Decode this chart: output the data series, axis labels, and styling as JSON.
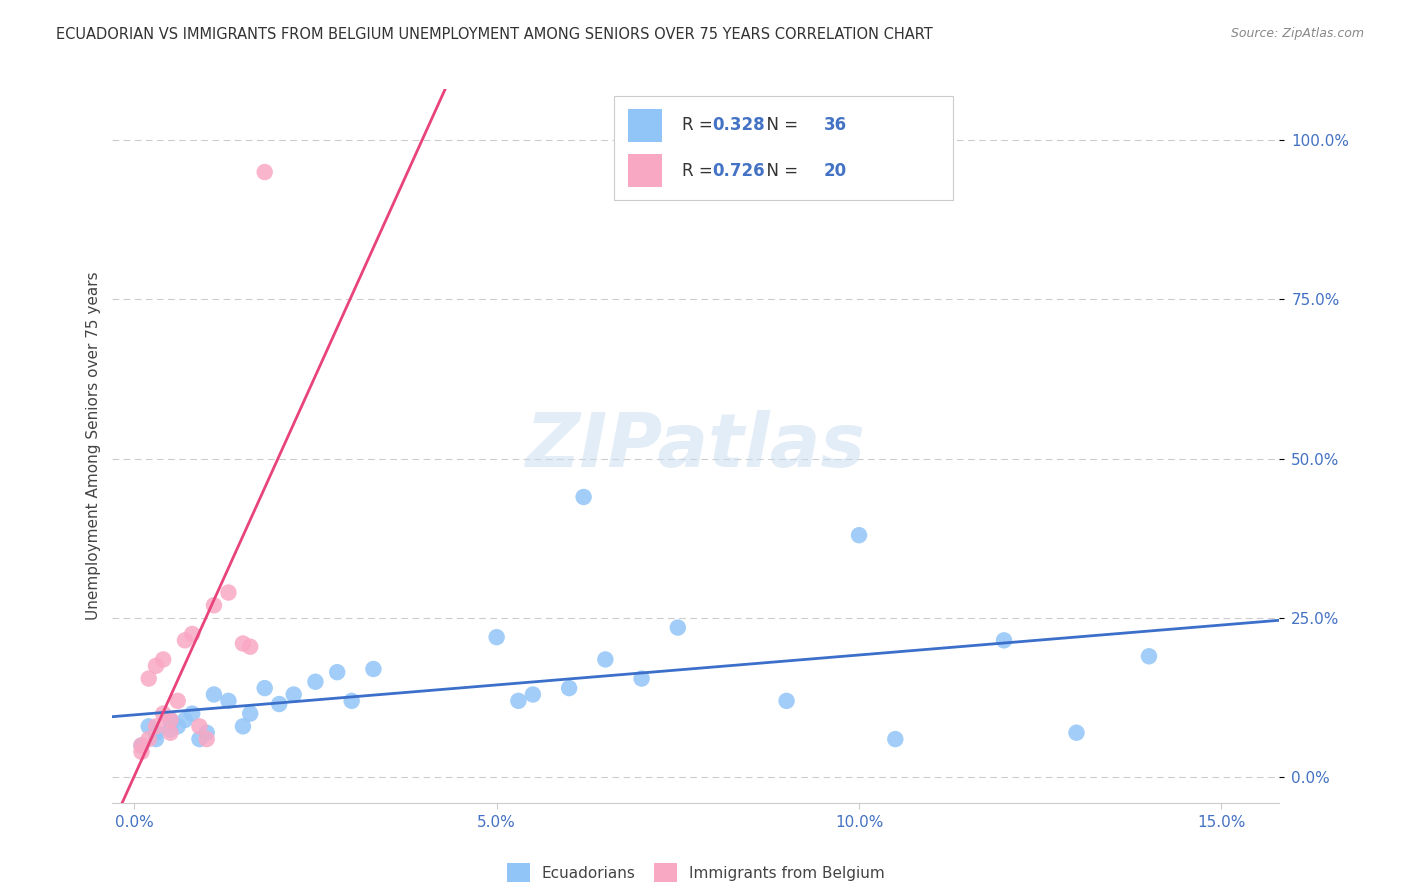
{
  "title": "ECUADORIAN VS IMMIGRANTS FROM BELGIUM UNEMPLOYMENT AMONG SENIORS OVER 75 YEARS CORRELATION CHART",
  "source": "Source: ZipAtlas.com",
  "xlabel_tick_vals": [
    0.0,
    0.05,
    0.1,
    0.15
  ],
  "ylabel_tick_vals": [
    0.0,
    0.25,
    0.5,
    0.75,
    1.0
  ],
  "xlim": [
    -0.003,
    0.158
  ],
  "ylim": [
    -0.04,
    1.08
  ],
  "blue_R": 0.328,
  "blue_N": 36,
  "pink_R": 0.726,
  "pink_N": 20,
  "legend_label_blue": "Ecuadorians",
  "legend_label_pink": "Immigrants from Belgium",
  "ylabel": "Unemployment Among Seniors over 75 years",
  "blue_color": "#92C5F7",
  "pink_color": "#F9A8C4",
  "blue_line_color": "#3B6FC9",
  "pink_line_color": "#E8437A",
  "blue_scatter_x": [
    0.001,
    0.002,
    0.003,
    0.003,
    0.005,
    0.005,
    0.006,
    0.007,
    0.008,
    0.009,
    0.01,
    0.011,
    0.013,
    0.015,
    0.016,
    0.018,
    0.02,
    0.022,
    0.025,
    0.028,
    0.03,
    0.033,
    0.05,
    0.053,
    0.055,
    0.06,
    0.062,
    0.065,
    0.07,
    0.075,
    0.09,
    0.1,
    0.105,
    0.12,
    0.13,
    0.14
  ],
  "blue_scatter_y": [
    0.05,
    0.08,
    0.07,
    0.06,
    0.09,
    0.075,
    0.08,
    0.09,
    0.1,
    0.06,
    0.07,
    0.13,
    0.12,
    0.08,
    0.1,
    0.14,
    0.115,
    0.13,
    0.15,
    0.165,
    0.12,
    0.17,
    0.22,
    0.12,
    0.13,
    0.14,
    0.44,
    0.185,
    0.155,
    0.235,
    0.12,
    0.38,
    0.06,
    0.215,
    0.07,
    0.19
  ],
  "pink_scatter_x": [
    0.001,
    0.001,
    0.002,
    0.002,
    0.003,
    0.003,
    0.004,
    0.004,
    0.005,
    0.005,
    0.006,
    0.007,
    0.008,
    0.009,
    0.01,
    0.011,
    0.013,
    0.015,
    0.016,
    0.018
  ],
  "pink_scatter_y": [
    0.04,
    0.05,
    0.06,
    0.155,
    0.08,
    0.175,
    0.1,
    0.185,
    0.07,
    0.09,
    0.12,
    0.215,
    0.225,
    0.08,
    0.06,
    0.27,
    0.29,
    0.21,
    0.205,
    0.95
  ],
  "watermark_text": "ZIPatlas",
  "grid_color": "#CCCCCC",
  "background_color": "#FFFFFF",
  "title_color": "#333333",
  "source_color": "#888888",
  "tick_color": "#4472C4",
  "tick_label_dark": "#333333",
  "ylabel_color": "#444444"
}
